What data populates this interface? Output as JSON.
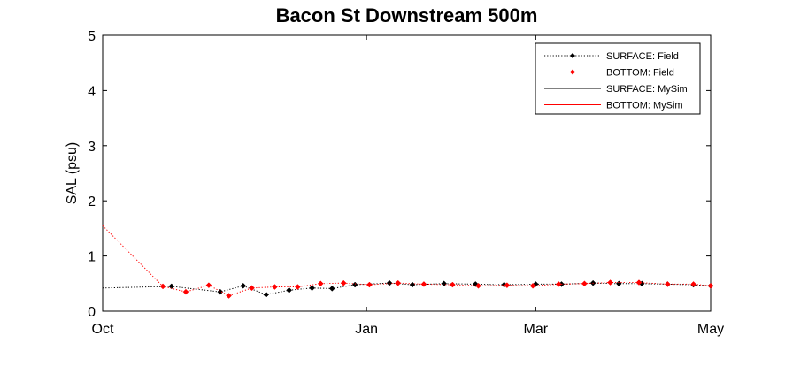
{
  "chart_data": {
    "type": "line",
    "title": "Bacon St Downstream 500m",
    "xlabel": "",
    "ylabel": "SAL (psu)",
    "ylim": [
      0,
      5
    ],
    "yticks": [
      "0",
      "1",
      "2",
      "3",
      "4",
      "5"
    ],
    "xlim": [
      "Oct",
      "May"
    ],
    "xticks": [
      {
        "label": "Oct",
        "day": 0
      },
      {
        "label": "Jan",
        "day": 92
      },
      {
        "label": "Mar",
        "day": 151
      },
      {
        "label": "May",
        "day": 212
      }
    ],
    "grid": false,
    "legend_position": "top-right",
    "series": [
      {
        "name": "SURFACE: Field",
        "color": "#000000",
        "style": "dotted-marker",
        "x": [
          0,
          24,
          41,
          49,
          57,
          65,
          73,
          80,
          88,
          100,
          108,
          119,
          130,
          140,
          151,
          160,
          171,
          180,
          188,
          197,
          206,
          212
        ],
        "y": [
          0.42,
          0.45,
          0.35,
          0.46,
          0.3,
          0.38,
          0.42,
          0.41,
          0.48,
          0.51,
          0.48,
          0.5,
          0.49,
          0.48,
          0.49,
          0.49,
          0.51,
          0.5,
          0.5,
          0.49,
          0.48,
          0.46
        ]
      },
      {
        "name": "BOTTOM: Field",
        "color": "#ff0000",
        "style": "dotted-marker",
        "x": [
          0,
          21,
          29,
          37,
          44,
          52,
          60,
          68,
          76,
          84,
          93,
          103,
          112,
          122,
          131,
          141,
          150,
          159,
          168,
          177,
          187,
          197,
          206,
          212
        ],
        "y": [
          1.55,
          0.45,
          0.35,
          0.47,
          0.28,
          0.42,
          0.44,
          0.44,
          0.5,
          0.51,
          0.48,
          0.51,
          0.49,
          0.48,
          0.46,
          0.47,
          0.46,
          0.49,
          0.5,
          0.52,
          0.52,
          0.49,
          0.49,
          0.46
        ]
      },
      {
        "name": "SURFACE: MySim",
        "color": "#000000",
        "style": "solid",
        "x": [],
        "y": []
      },
      {
        "name": "BOTTOM: MySim",
        "color": "#ff0000",
        "style": "solid",
        "x": [],
        "y": []
      }
    ]
  }
}
